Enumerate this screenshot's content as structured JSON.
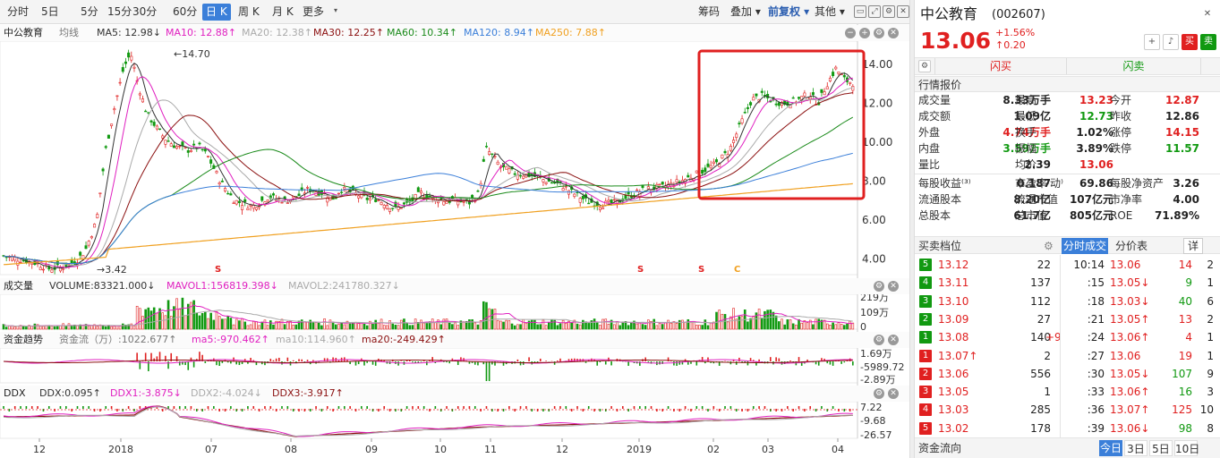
{
  "toolbar": {
    "periods": [
      "分时",
      "5日",
      "5分",
      "15分",
      "30分",
      "60分",
      "日 K",
      "周 K",
      "月 K",
      "更多"
    ],
    "active_period": "日 K",
    "right": [
      "筹码",
      "叠加",
      "前复权",
      "其他"
    ]
  },
  "main_legend": {
    "name": "中公教育",
    "mode": "均线",
    "ma5": "MA5: 12.98↓",
    "ma10": "MA10: 12.88↑",
    "ma20": "MA20: 12.38↑",
    "ma30": "MA30: 12.25↑",
    "ma60": "MA60: 10.34↑",
    "ma120": "MA120: 8.94↑",
    "ma250": "MA250: 7.88↑"
  },
  "colors": {
    "up": "#e02020",
    "down": "#119911",
    "ma5": "#333333",
    "ma10": "#e020c0",
    "ma20": "#aaaaaa",
    "ma30": "#8b1010",
    "ma60": "#1a8a1a",
    "ma120": "#3b7fd9",
    "ma250": "#f0a020",
    "highlight": "#e02020"
  },
  "price_axis": [
    "14.00",
    "12.00",
    "10.00",
    "8.00",
    "6.00",
    "4.00"
  ],
  "annotations": {
    "high": "14.70",
    "low": "3.42"
  },
  "signals": [
    "S",
    "S",
    "S",
    "C"
  ],
  "volume_legend": {
    "name": "成交量",
    "volume": "VOLUME:83321.000↓",
    "mavol1": "MAVOL1:156819.398↓",
    "mavol2": "MAVOL2:241780.327↓"
  },
  "volume_axis": [
    "219万",
    "109万",
    "0"
  ],
  "flow_legend": {
    "name": "资金趋势",
    "flow": "资金流（万）:1022.677↑",
    "ma5": "ma5:-970.462↑",
    "ma10": "ma10:114.960↑",
    "ma20": "ma20:-249.429↑"
  },
  "flow_axis": [
    "1.69万",
    "-5989.72",
    "-2.89万"
  ],
  "ddx_legend": {
    "name": "DDX",
    "ddx": "DDX:0.095↑",
    "ddx1": "DDX1:-3.875↓",
    "ddx2": "DDX2:-4.024↓",
    "ddx3": "DDX3:-3.917↑"
  },
  "ddx_axis": [
    "7.22",
    "-9.68",
    "-26.57"
  ],
  "x_axis": [
    "12",
    "2018",
    "07",
    "08",
    "09",
    "10",
    "11",
    "12",
    "2019",
    "02",
    "03",
    "04"
  ],
  "quote": {
    "name": "中公教育",
    "code": "(002607)",
    "price": "13.06",
    "change_pct": "+1.56%",
    "change": "0.20",
    "buy_label": "买",
    "sell_label": "卖",
    "flash_buy": "闪买",
    "flash_sell": "闪卖"
  },
  "market_header": "行情报价",
  "market": [
    [
      "成交量",
      "8.33万手",
      "最高",
      "13.23",
      "今开",
      "12.87"
    ],
    [
      "成交额",
      "1.09亿",
      "最低",
      "12.73",
      "昨收",
      "12.86"
    ],
    [
      "外盘",
      "4.74万手",
      "换手",
      "1.02%",
      "涨停",
      "14.15"
    ],
    [
      "内盘",
      "3.59万手",
      "振幅",
      "3.89%",
      "跌停",
      "11.57"
    ],
    [
      "量比",
      "2.39",
      "均价",
      "13.06",
      "",
      ""
    ]
  ],
  "fundamentals": [
    [
      "每股收益⁽³⁾",
      "0.187",
      "市盈率⁽动⁾",
      "69.86",
      "每股净资产",
      "3.26"
    ],
    [
      "流通股本",
      "8.20亿",
      "流通市值",
      "107亿元",
      "市净率",
      "4.00"
    ],
    [
      "总股本",
      "61.7亿",
      "总市值",
      "805亿元",
      "ROE",
      "71.89%"
    ]
  ],
  "orderbook_header": "买卖档位",
  "trades_tab": "分时成交",
  "table_tab": "分价表",
  "detail_label": "详",
  "orderbook": [
    {
      "lvl": "5",
      "side": "sell",
      "price": "13.12",
      "vol": "22",
      "chg": ""
    },
    {
      "lvl": "4",
      "side": "sell",
      "price": "13.11",
      "vol": "137",
      "chg": ""
    },
    {
      "lvl": "3",
      "side": "sell",
      "price": "13.10",
      "vol": "112",
      "chg": ""
    },
    {
      "lvl": "2",
      "side": "sell",
      "price": "13.09",
      "vol": "27",
      "chg": ""
    },
    {
      "lvl": "1",
      "side": "sell",
      "price": "13.08",
      "vol": "140",
      "chg": "+9"
    },
    {
      "lvl": "1",
      "side": "buy",
      "price": "13.07↑",
      "vol": "2",
      "chg": ""
    },
    {
      "lvl": "2",
      "side": "buy",
      "price": "13.06",
      "vol": "556",
      "chg": ""
    },
    {
      "lvl": "3",
      "side": "buy",
      "price": "13.05",
      "vol": "1",
      "chg": ""
    },
    {
      "lvl": "4",
      "side": "buy",
      "price": "13.03",
      "vol": "285",
      "chg": ""
    },
    {
      "lvl": "5",
      "side": "buy",
      "price": "13.02",
      "vol": "178",
      "chg": ""
    }
  ],
  "trades": [
    {
      "time": "10:14",
      "price": "13.06",
      "vol": "14",
      "dir": "up",
      "cnt": "2"
    },
    {
      "time": ":15",
      "price": "13.05↓",
      "vol": "9",
      "dir": "dn",
      "cnt": "1"
    },
    {
      "time": ":18",
      "price": "13.03↓",
      "vol": "40",
      "dir": "dn",
      "cnt": "6"
    },
    {
      "time": ":21",
      "price": "13.05↑",
      "vol": "13",
      "dir": "up",
      "cnt": "2"
    },
    {
      "time": ":24",
      "price": "13.06↑",
      "vol": "4",
      "dir": "up",
      "cnt": "1"
    },
    {
      "time": ":27",
      "price": "13.06",
      "vol": "19",
      "dir": "up",
      "cnt": "1"
    },
    {
      "time": ":30",
      "price": "13.05↓",
      "vol": "107",
      "dir": "dn",
      "cnt": "9"
    },
    {
      "time": ":33",
      "price": "13.06↑",
      "vol": "16",
      "dir": "dn",
      "cnt": "3"
    },
    {
      "time": ":36",
      "price": "13.07↑",
      "vol": "125",
      "dir": "up",
      "cnt": "10"
    },
    {
      "time": ":39",
      "price": "13.06↓",
      "vol": "98",
      "dir": "dn",
      "cnt": "8"
    }
  ],
  "fund_flow": "资金流向",
  "flow_ranges": [
    "今日",
    "3日",
    "5日",
    "10日"
  ]
}
